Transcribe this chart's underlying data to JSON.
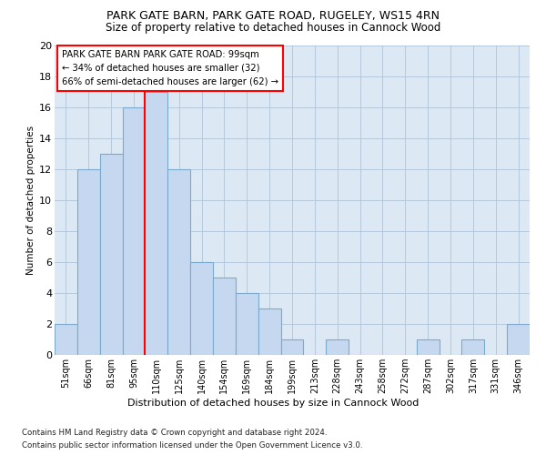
{
  "title1": "PARK GATE BARN, PARK GATE ROAD, RUGELEY, WS15 4RN",
  "title2": "Size of property relative to detached houses in Cannock Wood",
  "xlabel": "Distribution of detached houses by size in Cannock Wood",
  "ylabel": "Number of detached properties",
  "categories": [
    "51sqm",
    "66sqm",
    "81sqm",
    "95sqm",
    "110sqm",
    "125sqm",
    "140sqm",
    "154sqm",
    "169sqm",
    "184sqm",
    "199sqm",
    "213sqm",
    "228sqm",
    "243sqm",
    "258sqm",
    "272sqm",
    "287sqm",
    "302sqm",
    "317sqm",
    "331sqm",
    "346sqm"
  ],
  "values": [
    2,
    12,
    13,
    16,
    17,
    12,
    6,
    5,
    4,
    3,
    1,
    0,
    1,
    0,
    0,
    0,
    1,
    0,
    1,
    0,
    2
  ],
  "bar_color": "#c5d8f0",
  "bar_edge_color": "#7aabcf",
  "vline_x": 3.5,
  "vline_color": "red",
  "annotation_text": "PARK GATE BARN PARK GATE ROAD: 99sqm\n← 34% of detached houses are smaller (32)\n66% of semi-detached houses are larger (62) →",
  "annotation_box_color": "white",
  "annotation_box_edge_color": "red",
  "ylim": [
    0,
    20
  ],
  "yticks": [
    0,
    2,
    4,
    6,
    8,
    10,
    12,
    14,
    16,
    18,
    20
  ],
  "footer1": "Contains HM Land Registry data © Crown copyright and database right 2024.",
  "footer2": "Contains public sector information licensed under the Open Government Licence v3.0.",
  "bg_color": "#dce9f5",
  "fig_color": "#ffffff"
}
